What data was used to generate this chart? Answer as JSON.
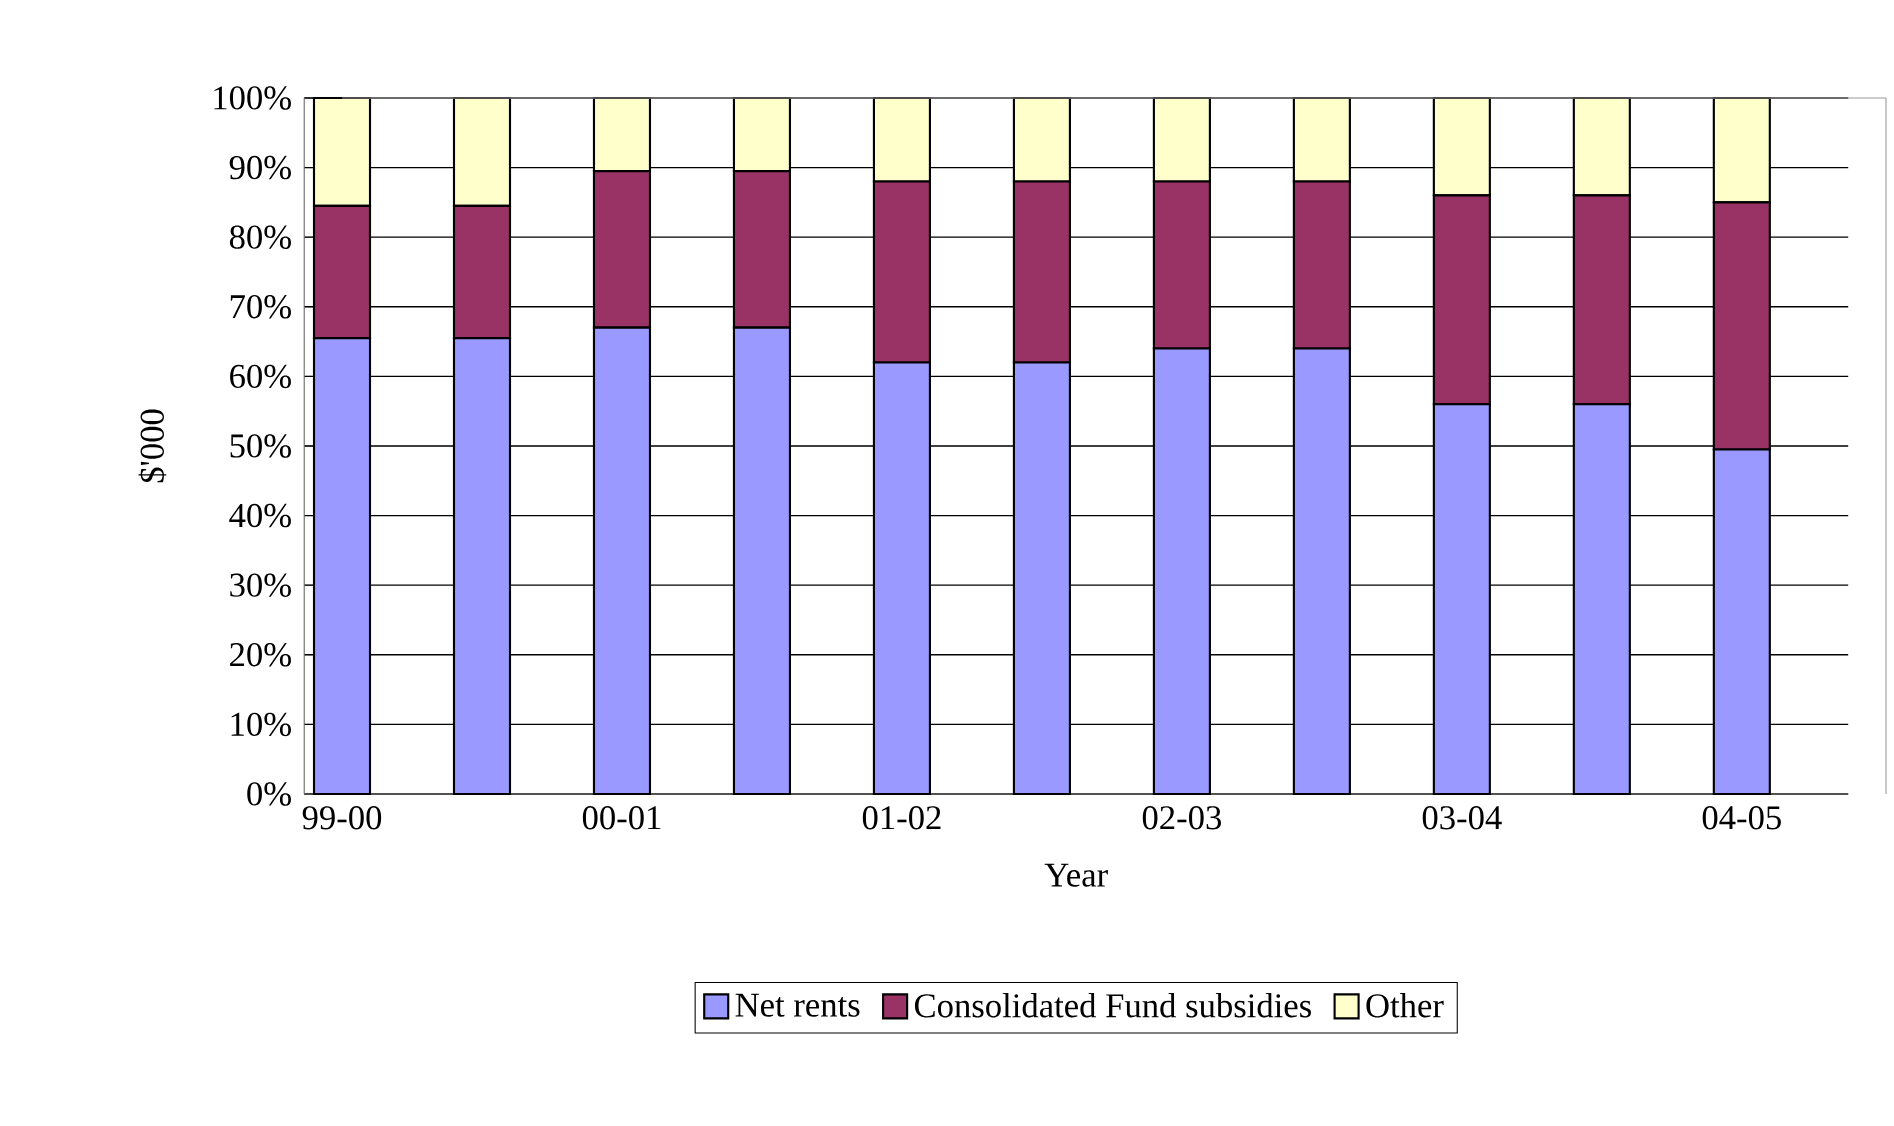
{
  "chart_data": {
    "type": "bar",
    "stacked": true,
    "xlabel": "Year",
    "ylabel": "$'000",
    "categories": [
      "99-00",
      null,
      "00-01",
      null,
      "01-02",
      null,
      "02-03",
      null,
      "03-04",
      null,
      "04-05"
    ],
    "series": [
      {
        "name": "Net rents",
        "color": "#9999ff",
        "values": [
          65.5,
          65.5,
          67,
          67,
          62,
          62,
          64,
          64,
          56,
          56,
          49.5
        ]
      },
      {
        "name": "Consolidated Fund subsidies",
        "color": "#993366",
        "values": [
          19,
          19,
          22.5,
          22.5,
          26,
          26,
          24,
          24,
          30,
          30,
          35.5
        ]
      },
      {
        "name": "Other",
        "color": "#ffffcc",
        "values": [
          15.5,
          15.5,
          10.5,
          10.5,
          12,
          12,
          12,
          12,
          14,
          14,
          15
        ]
      }
    ],
    "ylim": [
      0,
      100
    ],
    "yticks": [
      {
        "value": 0,
        "label": "0%"
      },
      {
        "value": 10,
        "label": "10%"
      },
      {
        "value": 20,
        "label": "20%"
      },
      {
        "value": 30,
        "label": "30%"
      },
      {
        "value": 40,
        "label": "40%"
      },
      {
        "value": 50,
        "label": "50%"
      },
      {
        "value": 60,
        "label": "60%"
      },
      {
        "value": 70,
        "label": "70%"
      },
      {
        "value": 80,
        "label": "80%"
      },
      {
        "value": 90,
        "label": "90%"
      },
      {
        "value": 100,
        "label": "100%"
      }
    ],
    "grid": "y",
    "legend": "bottom"
  }
}
